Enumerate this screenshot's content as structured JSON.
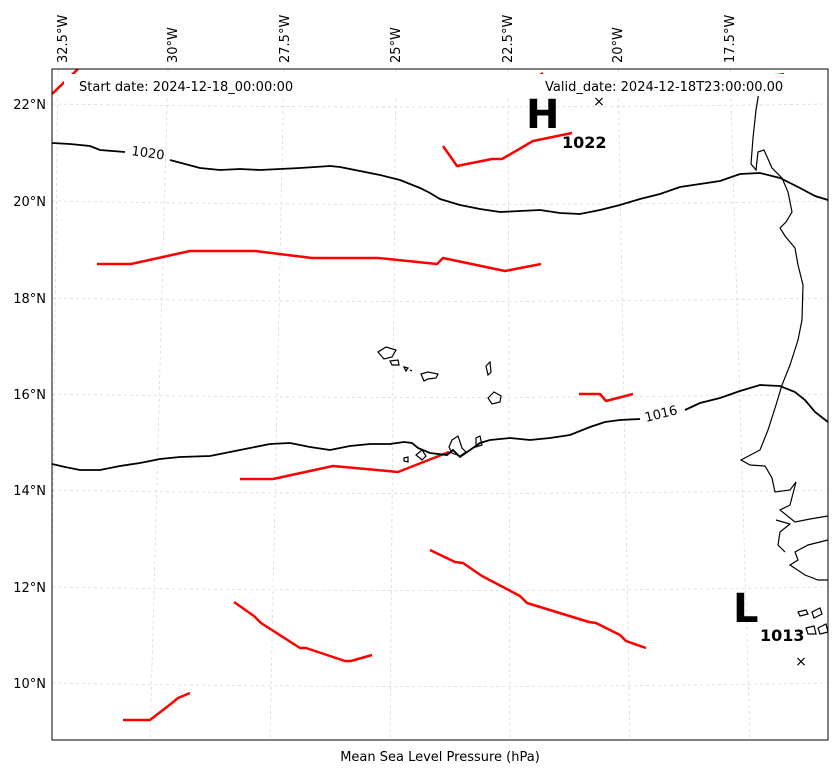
{
  "map": {
    "start_date": "Start date: 2024-12-18_00:00:00",
    "valid_date": "Valid_date: 2024-12-18T23:00:00.00",
    "caption": "Mean Sea Level Pressure (hPa)",
    "lon_labels": [
      "32.5°W",
      "30°W",
      "27.5°W",
      "25°W",
      "22.5°W",
      "20°W",
      "17.5°W"
    ],
    "lat_labels": [
      "22°N",
      "20°N",
      "18°N",
      "16°N",
      "14°N",
      "12°N",
      "10°N"
    ],
    "isobars": [
      {
        "value": "1020"
      },
      {
        "value": "1016"
      }
    ],
    "high": {
      "letter": "H",
      "value": "1022"
    },
    "low": {
      "letter": "L",
      "value": "1013"
    },
    "colors": {
      "isobar": "#000000",
      "front": "#ff0000",
      "grid": "#cccccc"
    }
  }
}
